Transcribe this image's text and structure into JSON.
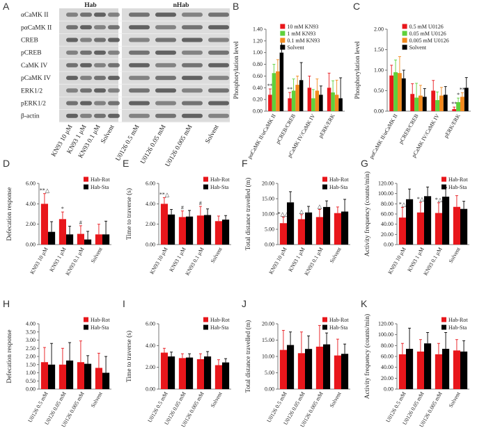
{
  "blot": {
    "label": "A",
    "groups": [
      "Hab",
      "nHab"
    ],
    "rows": [
      "αCaMK II",
      "pαCaMK II",
      "CREB",
      "pCREB",
      "CaMK IV",
      "pCaMK IV",
      "ERK1/2",
      "pERK1/2",
      "β-actin"
    ],
    "lanes": [
      "KN93 10 μM",
      "KN93 1 μM",
      "KN93 0.1 μM",
      "Solvent",
      "U0126 0.5 mM",
      "U0126 0.05 mM",
      "U0126 0.005 mM",
      "Solvent"
    ]
  },
  "chart_data": [
    {
      "type": "bar",
      "label": "B",
      "y_label": "Phosphorylation level",
      "legend": "upper center",
      "categories": [
        "pαCaMK II/αCaMK II",
        "pCREB/CREB",
        "pCaMK IV/CaMK IV",
        "pERK/ERK"
      ],
      "ylim": [
        0,
        1.4
      ],
      "yticks": [
        {
          "value": 0,
          "label": "0.00"
        },
        {
          "value": 0.2,
          "label": "0.20"
        },
        {
          "value": 0.4,
          "label": "0.40"
        },
        {
          "value": 0.6,
          "label": "0.60"
        },
        {
          "value": 0.8,
          "label": "0.80"
        },
        {
          "value": 1,
          "label": "1.00"
        },
        {
          "value": 1.2,
          "label": "1.20"
        },
        {
          "value": 1.4,
          "label": "1.40"
        }
      ],
      "series": [
        {
          "name": "10 mM KN93",
          "color": "#e8161b",
          "values": [
            0.28,
            0.22,
            0.4,
            0.4
          ],
          "errors": [
            0.1,
            0.1,
            0.2,
            0.25
          ],
          "annotations": [
            "**",
            "**",
            null,
            null
          ]
        },
        {
          "name": "1 mM KN93",
          "color": "#5fd13b",
          "values": [
            0.65,
            0.35,
            0.22,
            0.32
          ],
          "errors": [
            0.15,
            0.2,
            0.15,
            0.2
          ],
          "annotations": [
            null,
            null,
            null,
            null
          ]
        },
        {
          "name": "0.1 mM KN93",
          "color": "#f28a1e",
          "values": [
            0.68,
            0.45,
            0.35,
            0.28
          ],
          "errors": [
            0.2,
            0.15,
            0.2,
            0.25
          ],
          "annotations": [
            null,
            null,
            null,
            null
          ]
        },
        {
          "name": "Solvent",
          "color": "#000000",
          "values": [
            1.0,
            0.53,
            0.28,
            0.22
          ],
          "errors": [
            0.2,
            0.3,
            0.15,
            0.35
          ],
          "annotations": [
            null,
            null,
            null,
            null
          ]
        }
      ]
    },
    {
      "type": "bar",
      "label": "C",
      "y_label": "Phosphorylation level",
      "legend": "upper center",
      "categories": [
        "pαCaMK II/αCaMK II",
        "pCREB/CREB",
        "pCaMK IV/CaMK IV",
        "pERK/ERK"
      ],
      "ylim": [
        0,
        2
      ],
      "yticks": [
        {
          "value": 0,
          "label": "0.00"
        },
        {
          "value": 0.5,
          "label": "0.50"
        },
        {
          "value": 1,
          "label": "1.00"
        },
        {
          "value": 1.5,
          "label": "1.50"
        },
        {
          "value": 2,
          "label": "2.00"
        }
      ],
      "series": [
        {
          "name": "0.5 mM U0126",
          "color": "#e8161b",
          "values": [
            0.87,
            0.42,
            0.5,
            0.05
          ],
          "errors": [
            0.25,
            0.25,
            0.25,
            0.05
          ],
          "annotations": [
            null,
            null,
            null,
            "**"
          ]
        },
        {
          "name": "0.05 mM U0126",
          "color": "#5fd13b",
          "values": [
            0.95,
            0.33,
            0.27,
            0.22
          ],
          "errors": [
            0.3,
            0.35,
            0.2,
            0.1
          ],
          "annotations": [
            null,
            null,
            null,
            "*"
          ]
        },
        {
          "name": "0.005 mM U0126",
          "color": "#f28a1e",
          "values": [
            0.93,
            0.38,
            0.38,
            0.35
          ],
          "errors": [
            0.4,
            0.25,
            0.2,
            0.1
          ],
          "annotations": [
            null,
            null,
            null,
            "**"
          ]
        },
        {
          "name": "Solvent",
          "color": "#000000",
          "values": [
            0.8,
            0.35,
            0.4,
            0.57
          ],
          "errors": [
            0.2,
            0.2,
            0.2,
            0.25
          ],
          "annotations": [
            null,
            null,
            null,
            null
          ]
        }
      ]
    },
    {
      "type": "bar",
      "label": "D",
      "y_label": "Defecation response",
      "legend": "upper right",
      "categories": [
        "KN93 10 μM",
        "KN93 1 μM",
        "KN93 0.1 μM",
        "Solvent"
      ],
      "ylim": [
        0,
        6
      ],
      "yticks": [
        {
          "value": 0,
          "label": "0.00"
        },
        {
          "value": 2,
          "label": "2.00"
        },
        {
          "value": 4,
          "label": "4.00"
        },
        {
          "value": 6,
          "label": "6.00"
        }
      ],
      "series": [
        {
          "name": "Hab-Rot",
          "color": "#e8161b",
          "values": [
            4.0,
            2.5,
            1.05,
            1.0
          ],
          "errors": [
            1.0,
            0.7,
            0.8,
            1.0
          ],
          "annotations": [
            "**△",
            "*",
            "#",
            null
          ]
        },
        {
          "name": "Hab-Sta",
          "color": "#000000",
          "values": [
            1.25,
            1.0,
            0.5,
            1.0
          ],
          "errors": [
            1.0,
            0.8,
            0.8,
            1.3
          ],
          "annotations": [
            null,
            null,
            null,
            null
          ]
        }
      ]
    },
    {
      "type": "bar",
      "label": "E",
      "y_label": "Time to traverse (s)",
      "legend": "upper right",
      "categories": [
        "KN93 10 μM",
        "KN93 1 μM",
        "KN93 0.1 μM",
        "Solvent"
      ],
      "ylim": [
        0,
        6
      ],
      "yticks": [
        {
          "value": 0,
          "label": "0.00"
        },
        {
          "value": 2,
          "label": "2.00"
        },
        {
          "value": 4,
          "label": "4.00"
        },
        {
          "value": 6,
          "label": "6.00"
        }
      ],
      "series": [
        {
          "name": "Hab-Rot",
          "color": "#e8161b",
          "values": [
            4.0,
            2.7,
            2.85,
            2.3
          ],
          "errors": [
            0.6,
            0.6,
            0.9,
            0.5
          ],
          "annotations": [
            "**△",
            "#",
            "#",
            null
          ]
        },
        {
          "name": "Hab-Sta",
          "color": "#000000",
          "values": [
            2.95,
            2.75,
            2.9,
            2.45
          ],
          "errors": [
            0.5,
            0.6,
            0.6,
            0.4
          ],
          "annotations": [
            null,
            null,
            null,
            null
          ]
        }
      ]
    },
    {
      "type": "bar",
      "label": "F",
      "y_label": "Total distance travelled (m)",
      "legend": "upper right",
      "categories": [
        "KN93 10 μM",
        "KN93 1 μM",
        "KN93 0.1 μM",
        "Solvent"
      ],
      "ylim": [
        0,
        20
      ],
      "yticks": [
        {
          "value": 0,
          "label": "0.00"
        },
        {
          "value": 5,
          "label": "5.00"
        },
        {
          "value": 10,
          "label": "10.00"
        },
        {
          "value": 15,
          "label": "15.00"
        },
        {
          "value": 20,
          "label": "20.00"
        }
      ],
      "series": [
        {
          "name": "Hab-Rot",
          "color": "#e8161b",
          "values": [
            7.0,
            8.3,
            9.0,
            10.3
          ],
          "errors": [
            2.0,
            1.5,
            2.5,
            2.0
          ],
          "annotations": [
            "*△△",
            "△",
            "△",
            null
          ]
        },
        {
          "name": "Hab-Sta",
          "color": "#000000",
          "values": [
            13.8,
            10.5,
            12.3,
            10.8
          ],
          "errors": [
            3.5,
            2.0,
            2.0,
            4.0
          ],
          "annotations": [
            null,
            null,
            null,
            null
          ]
        }
      ]
    },
    {
      "type": "bar",
      "label": "G",
      "y_label": "Activity frequency (counts/min)",
      "legend": "upper right",
      "categories": [
        "KN93 10 μM",
        "KN93 1 μM",
        "KN93 0.1 μM",
        "Solvent"
      ],
      "ylim": [
        0,
        120
      ],
      "yticks": [
        {
          "value": 0,
          "label": "0.00"
        },
        {
          "value": 20,
          "label": "20.00"
        },
        {
          "value": 40,
          "label": "40.00"
        },
        {
          "value": 60,
          "label": "60.00"
        },
        {
          "value": 80,
          "label": "80.00"
        },
        {
          "value": 100,
          "label": "100.00"
        },
        {
          "value": 120,
          "label": "120.00"
        }
      ],
      "series": [
        {
          "name": "Hab-Rot",
          "color": "#e8161b",
          "values": [
            53,
            63,
            62,
            74
          ],
          "errors": [
            20,
            20,
            20,
            22
          ],
          "annotations": [
            "*△",
            "*△",
            "*△",
            null
          ]
        },
        {
          "name": "Hab-Sta",
          "color": "#000000",
          "values": [
            89,
            95,
            94,
            70
          ],
          "errors": [
            20,
            18,
            18,
            15
          ],
          "annotations": [
            null,
            null,
            null,
            null
          ]
        }
      ]
    },
    {
      "type": "bar",
      "label": "H",
      "y_label": "Defecation response",
      "legend": "upper right",
      "categories": [
        "U0126 0.5 mM",
        "U0126 0.05 mM",
        "U0126 0.005 mM",
        "Solvent"
      ],
      "ylim": [
        0,
        4
      ],
      "yticks": [
        {
          "value": 0,
          "label": "0.00"
        },
        {
          "value": 0.5,
          "label": "0.50"
        },
        {
          "value": 1,
          "label": "1.00"
        },
        {
          "value": 1.5,
          "label": "1.50"
        },
        {
          "value": 2,
          "label": "2.00"
        },
        {
          "value": 2.5,
          "label": "2.50"
        },
        {
          "value": 3,
          "label": "3.00"
        },
        {
          "value": 3.5,
          "label": "3.50"
        },
        {
          "value": 4,
          "label": "4.00"
        }
      ],
      "series": [
        {
          "name": "Hab-Rot",
          "color": "#e8161b",
          "values": [
            1.65,
            1.5,
            1.65,
            1.3
          ],
          "errors": [
            0.9,
            1.0,
            1.3,
            0.9
          ]
        },
        {
          "name": "Hab-Sta",
          "color": "#000000",
          "values": [
            1.5,
            1.75,
            1.55,
            1.0
          ],
          "errors": [
            1.3,
            1.1,
            0.5,
            1.0
          ]
        }
      ]
    },
    {
      "type": "bar",
      "label": "I",
      "y_label": "Time to traverse (s)",
      "legend": "upper right",
      "categories": [
        "U0126 0.5 mM",
        "U0126 0.05 mM",
        "U0126 0.005 mM",
        "Solvent"
      ],
      "ylim": [
        0,
        6
      ],
      "yticks": [
        {
          "value": 0,
          "label": "0.00"
        },
        {
          "value": 2,
          "label": "2.00"
        },
        {
          "value": 4,
          "label": "4.00"
        },
        {
          "value": 6,
          "label": "6.00"
        }
      ],
      "series": [
        {
          "name": "Hab-Rot",
          "color": "#e8161b",
          "values": [
            3.35,
            2.85,
            2.75,
            2.2
          ],
          "errors": [
            0.4,
            0.4,
            0.5,
            0.5
          ]
        },
        {
          "name": "Hab-Sta",
          "color": "#000000",
          "values": [
            3.0,
            2.9,
            3.0,
            2.45
          ],
          "errors": [
            0.4,
            0.35,
            0.45,
            0.35
          ]
        }
      ]
    },
    {
      "type": "bar",
      "label": "J",
      "y_label": "Total distance travelled (m)",
      "legend": "upper right",
      "categories": [
        "U0126 0.5 mM",
        "U0126 0.05 mM",
        "U0126 0.005 mM",
        "Solvent"
      ],
      "ylim": [
        0,
        20
      ],
      "yticks": [
        {
          "value": 0,
          "label": "0.00"
        },
        {
          "value": 5,
          "label": "5.00"
        },
        {
          "value": 10,
          "label": "10.00"
        },
        {
          "value": 15,
          "label": "15.00"
        },
        {
          "value": 20,
          "label": "20.00"
        }
      ],
      "series": [
        {
          "name": "Hab-Rot",
          "color": "#e8161b",
          "values": [
            12.0,
            11.0,
            13.0,
            10.3
          ],
          "errors": [
            6.0,
            6.5,
            6.5,
            5.0
          ]
        },
        {
          "name": "Hab-Sta",
          "color": "#000000",
          "values": [
            13.5,
            12.3,
            13.7,
            10.8
          ],
          "errors": [
            4.0,
            4.0,
            3.5,
            3.0
          ]
        }
      ]
    },
    {
      "type": "bar",
      "label": "K",
      "y_label": "Activity frequency (counts/min)",
      "legend": "upper right",
      "categories": [
        "U0126 0.5 mM",
        "U0126 0.05 mM",
        "U0126 0.005 mM",
        "Solvent"
      ],
      "ylim": [
        0,
        120
      ],
      "yticks": [
        {
          "value": 0,
          "label": "0.00"
        },
        {
          "value": 20,
          "label": "20.00"
        },
        {
          "value": 40,
          "label": "40.00"
        },
        {
          "value": 60,
          "label": "60.00"
        },
        {
          "value": 80,
          "label": "80.00"
        },
        {
          "value": 100,
          "label": "100.00"
        },
        {
          "value": 120,
          "label": "120.00"
        }
      ],
      "series": [
        {
          "name": "Hab-Rot",
          "color": "#e8161b",
          "values": [
            64,
            69,
            64,
            71
          ],
          "errors": [
            20,
            22,
            20,
            20
          ]
        },
        {
          "name": "Hab-Sta",
          "color": "#000000",
          "values": [
            74,
            84,
            74,
            69
          ],
          "errors": [
            38,
            20,
            30,
            20
          ]
        }
      ]
    }
  ]
}
